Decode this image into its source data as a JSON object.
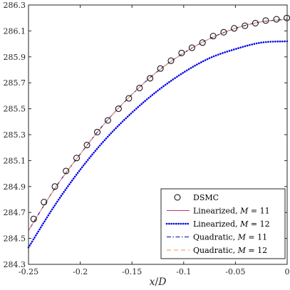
{
  "chart_data": {
    "type": "line",
    "xlabel_main": "x",
    "xlabel_sep": "/",
    "xlabel_den": "D",
    "ylabel": "",
    "xlim": [
      -0.25,
      0
    ],
    "ylim": [
      284.3,
      286.3
    ],
    "xticks": [
      {
        "v": -0.25,
        "label": "-0.25"
      },
      {
        "v": -0.2,
        "label": "-0.2"
      },
      {
        "v": -0.15,
        "label": "-0.15"
      },
      {
        "v": -0.1,
        "label": "-0.1"
      },
      {
        "v": -0.05,
        "label": "-0.05"
      },
      {
        "v": 0,
        "label": "0"
      }
    ],
    "yticks": [
      {
        "v": 284.3,
        "label": "284.3"
      },
      {
        "v": 284.5,
        "label": "284.5"
      },
      {
        "v": 284.7,
        "label": "284.7"
      },
      {
        "v": 284.9,
        "label": "284.9"
      },
      {
        "v": 285.1,
        "label": "285.1"
      },
      {
        "v": 285.3,
        "label": "285.3"
      },
      {
        "v": 285.5,
        "label": "285.5"
      },
      {
        "v": 285.7,
        "label": "285.7"
      },
      {
        "v": 285.9,
        "label": "285.9"
      },
      {
        "v": 286.1,
        "label": "286.1"
      },
      {
        "v": 286.3,
        "label": "286.3"
      }
    ],
    "grid": false,
    "legend_position": "bottom-right",
    "series": [
      {
        "name": "DSMC",
        "style": "markers",
        "color": "#000000",
        "x": [
          -0.245,
          -0.235,
          -0.2245,
          -0.2137,
          -0.2035,
          -0.1935,
          -0.1835,
          -0.1733,
          -0.163,
          -0.153,
          -0.1427,
          -0.1325,
          -0.1225,
          -0.1123,
          -0.102,
          -0.092,
          -0.0818,
          -0.0715,
          -0.0613,
          -0.0512,
          -0.0408,
          -0.0307,
          -0.0207,
          -0.0103,
          -0.0003
        ],
        "y": [
          284.65,
          284.78,
          284.9,
          285.02,
          285.12,
          285.22,
          285.32,
          285.41,
          285.5,
          285.58,
          285.66,
          285.735,
          285.81,
          285.87,
          285.93,
          285.97,
          286.01,
          286.06,
          286.09,
          286.12,
          286.14,
          286.16,
          286.18,
          286.19,
          286.2
        ]
      },
      {
        "name": "Linearized, M = 11",
        "name_main": "Linearized, ",
        "name_var": "M",
        "name_rest": " = 11",
        "style": "solid",
        "color": "#b23a6a",
        "x": [
          -0.25,
          -0.225,
          -0.2,
          -0.175,
          -0.15,
          -0.125,
          -0.1,
          -0.075,
          -0.05,
          -0.025,
          0
        ],
        "y": [
          284.56,
          284.88,
          285.15,
          285.4,
          285.61,
          285.79,
          285.93,
          286.04,
          286.12,
          286.17,
          286.19
        ]
      },
      {
        "name": "Linearized, M = 12",
        "name_main": "Linearized, ",
        "name_var": "M",
        "name_rest": " = 12",
        "style": "dotted",
        "color": "#0000ee",
        "x": [
          -0.25,
          -0.225,
          -0.2,
          -0.175,
          -0.15,
          -0.125,
          -0.1,
          -0.075,
          -0.05,
          -0.025,
          0
        ],
        "y": [
          284.43,
          284.75,
          285.03,
          285.27,
          285.47,
          285.64,
          285.78,
          285.89,
          285.96,
          286.01,
          286.02
        ]
      },
      {
        "name": "Quadratic, M = 11",
        "name_main": "Quadratic, ",
        "name_var": "M",
        "name_rest": " = 11",
        "style": "dashdot",
        "color": "#2a2ab0",
        "x": [
          -0.25,
          -0.225,
          -0.2,
          -0.175,
          -0.15,
          -0.125,
          -0.1,
          -0.075,
          -0.05,
          -0.025,
          0
        ],
        "y": [
          284.56,
          284.88,
          285.15,
          285.4,
          285.61,
          285.79,
          285.93,
          286.04,
          286.12,
          286.17,
          286.19
        ]
      },
      {
        "name": "Quadratic, M = 12",
        "name_main": "Quadratic, ",
        "name_var": "M",
        "name_rest": " = 12",
        "style": "dashed",
        "color": "#f0a878",
        "x": [
          -0.25,
          -0.225,
          -0.2,
          -0.175,
          -0.15,
          -0.125,
          -0.1,
          -0.075,
          -0.05,
          -0.025,
          0
        ],
        "y": [
          284.56,
          284.88,
          285.15,
          285.4,
          285.61,
          285.79,
          285.93,
          286.04,
          286.12,
          286.17,
          286.19
        ]
      }
    ]
  }
}
